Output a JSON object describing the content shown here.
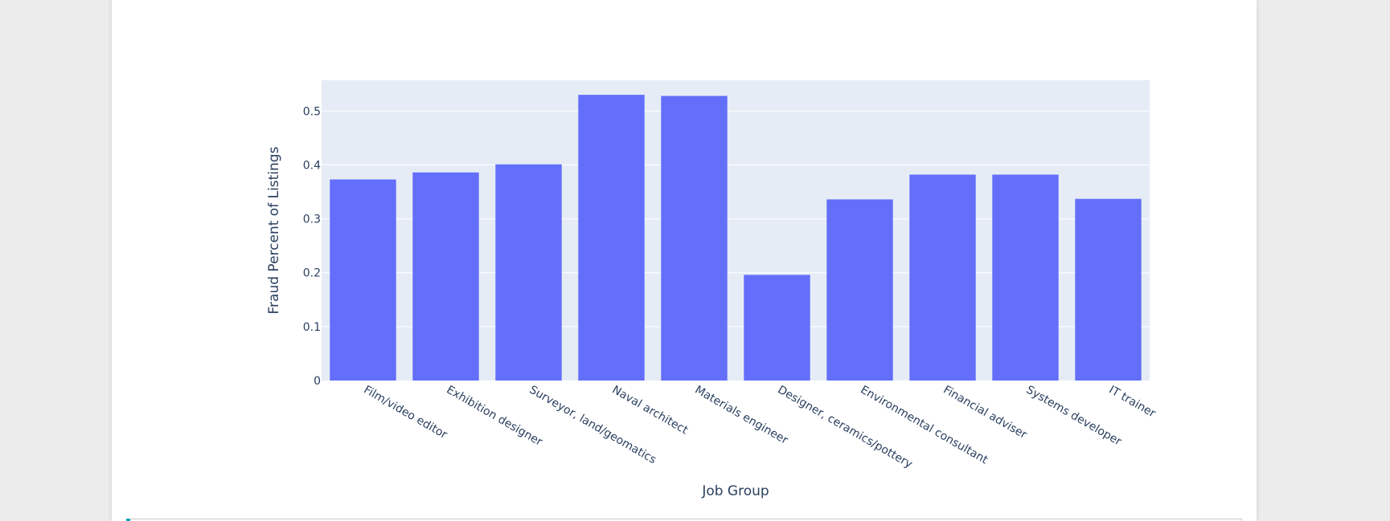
{
  "colors": {
    "page_background": "#ececec",
    "card_background": "#ffffff",
    "plot_background": "#e5ecf6",
    "gridline": "#ffffff",
    "bar": "#636efa",
    "text": "#2a3f5f",
    "accent": "#17a2b8"
  },
  "chart_data": {
    "type": "bar",
    "categories": [
      "Film/video editor",
      "Exhibition designer",
      "Surveyor, land/geomatics",
      "Naval architect",
      "Materials engineer",
      "Designer, ceramics/pottery",
      "Environmental consultant",
      "Financial adviser",
      "Systems developer",
      "IT trainer"
    ],
    "values": [
      0.373,
      0.386,
      0.401,
      0.53,
      0.528,
      0.196,
      0.336,
      0.382,
      0.382,
      0.337
    ],
    "xlabel": "Job Group",
    "ylabel": "Fraud Percent of Listings",
    "ylim": [
      0,
      0.557
    ],
    "yticks": [
      0,
      0.1,
      0.2,
      0.3,
      0.4,
      0.5
    ],
    "ytick_labels": [
      "0",
      "0.1",
      "0.2",
      "0.3",
      "0.4",
      "0.5"
    ],
    "grid": true,
    "legend": "none"
  }
}
